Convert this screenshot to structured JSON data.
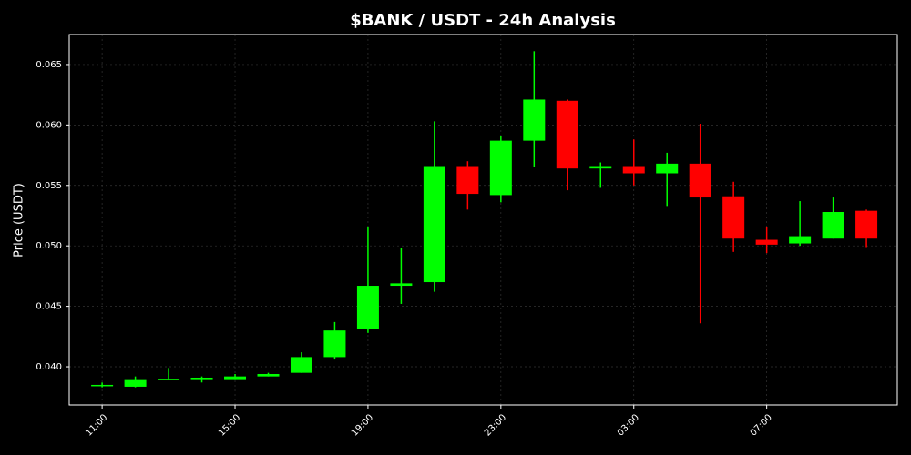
{
  "chart_data": {
    "type": "candlestick",
    "title": "$BANK / USDT - 24h Analysis",
    "y_label": "Price (USDT)",
    "categories": [
      "11:00",
      null,
      null,
      null,
      "15:00",
      null,
      null,
      null,
      "19:00",
      null,
      null,
      null,
      "23:00",
      null,
      null,
      null,
      "03:00",
      null,
      null,
      null,
      "07:00",
      null,
      null,
      null
    ],
    "open": [
      0.0385,
      0.03835,
      0.0389,
      0.0389,
      0.0389,
      0.0392,
      0.0395,
      0.0408,
      0.0431,
      0.0467,
      0.047,
      0.0566,
      0.0542,
      0.0587,
      0.062,
      0.0564,
      0.0566,
      0.056,
      0.0568,
      0.0541,
      0.0505,
      0.0502,
      0.0506,
      0.0529
    ],
    "high": [
      0.0387,
      0.0392,
      0.0399,
      0.0392,
      0.0394,
      0.0395,
      0.0412,
      0.0437,
      0.0516,
      0.0498,
      0.0603,
      0.057,
      0.0591,
      0.0661,
      0.0621,
      0.0569,
      0.0588,
      0.0577,
      0.0601,
      0.0553,
      0.0516,
      0.0537,
      0.054,
      0.053
    ],
    "low": [
      0.0383,
      0.0383,
      0.0389,
      0.0387,
      0.0389,
      0.0392,
      0.0395,
      0.0406,
      0.0428,
      0.0452,
      0.0462,
      0.053,
      0.0536,
      0.0565,
      0.0546,
      0.0548,
      0.055,
      0.0533,
      0.0436,
      0.0495,
      0.0494,
      0.05,
      0.0506,
      0.0499
    ],
    "close": [
      0.0385,
      0.0389,
      0.039,
      0.0391,
      0.0392,
      0.0394,
      0.0408,
      0.043,
      0.0467,
      0.0469,
      0.0566,
      0.0543,
      0.0587,
      0.0621,
      0.0564,
      0.0566,
      0.056,
      0.0568,
      0.054,
      0.0506,
      0.0501,
      0.0508,
      0.0528,
      0.0506
    ],
    "up_color": "#00ff00",
    "down_color": "#ff0000",
    "ylim": [
      0.03684,
      0.06748
    ],
    "yticks": [
      {
        "value": 0.04,
        "label": "0.040"
      },
      {
        "value": 0.045,
        "label": "0.045"
      },
      {
        "value": 0.05,
        "label": "0.050"
      },
      {
        "value": 0.055,
        "label": "0.055"
      },
      {
        "value": 0.06,
        "label": "0.060"
      },
      {
        "value": 0.065,
        "label": "0.065"
      }
    ],
    "grid": true
  }
}
